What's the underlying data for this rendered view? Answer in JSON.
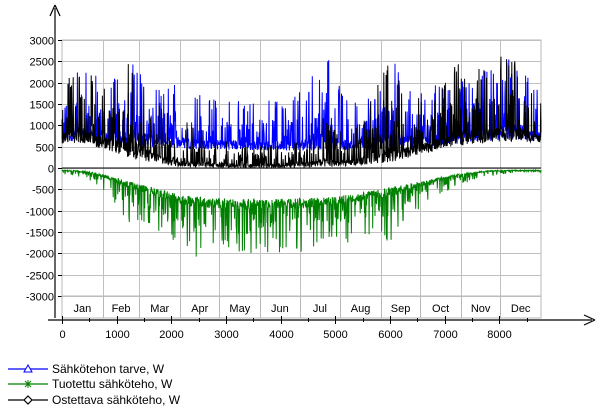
{
  "chart_data": {
    "type": "line",
    "title": "",
    "xlabel": "",
    "ylabel": "",
    "xlim": [
      0,
      8760
    ],
    "ylim": [
      -3000,
      3000
    ],
    "x_ticks": [
      0,
      1000,
      2000,
      3000,
      4000,
      5000,
      6000,
      7000,
      8000
    ],
    "y_ticks": [
      3000,
      2500,
      2000,
      1500,
      1000,
      500,
      0,
      -500,
      -1000,
      -1500,
      -2000,
      -2500,
      -3000
    ],
    "y_tick_labels": [
      "3000",
      "2500",
      "2000",
      "1500",
      "1000",
      "500",
      "0",
      "-500",
      "-1000",
      "-1500",
      "-2000",
      "-2500",
      "-3000"
    ],
    "months": [
      "Jan",
      "Feb",
      "Mar",
      "Apr",
      "May",
      "Jun",
      "Jul",
      "Aug",
      "Sep",
      "Oct",
      "Nov",
      "Dec"
    ],
    "month_boundaries": [
      0,
      744,
      1416,
      2160,
      2880,
      3624,
      4344,
      5088,
      5832,
      6552,
      7296,
      8016,
      8760
    ],
    "grid": true,
    "legend_position": "bottom-left",
    "series": [
      {
        "name": "Sähkötehon tarve, W",
        "color": "#0000ff",
        "marker": "triangle",
        "x": [
          0,
          300,
          600,
          900,
          1200,
          1500,
          1800,
          2100,
          2400,
          2700,
          3000,
          3300,
          3600,
          3900,
          4200,
          4500,
          4800,
          5100,
          5400,
          5700,
          6000,
          6300,
          6600,
          6900,
          7200,
          7500,
          7800,
          8100,
          8400,
          8760
        ],
        "base": [
          600,
          650,
          600,
          560,
          520,
          500,
          480,
          460,
          440,
          430,
          430,
          420,
          420,
          420,
          410,
          410,
          420,
          420,
          430,
          440,
          450,
          470,
          490,
          520,
          560,
          600,
          630,
          650,
          650,
          620
        ],
        "peak": [
          2000,
          2500,
          2200,
          2000,
          2900,
          2300,
          1800,
          2100,
          1900,
          1600,
          1850,
          1500,
          1650,
          1600,
          1700,
          2000,
          2800,
          1900,
          1500,
          1800,
          2800,
          1900,
          1800,
          2000,
          2000,
          2200,
          2300,
          2500,
          2800,
          1700
        ]
      },
      {
        "name": "Tuotettu sähköteho, W",
        "color": "#008000",
        "marker": "asterisk",
        "x": [
          0,
          300,
          600,
          900,
          1200,
          1500,
          1800,
          2100,
          2400,
          2700,
          3000,
          3300,
          3600,
          3900,
          4200,
          4500,
          4800,
          5100,
          5400,
          5700,
          6000,
          6300,
          6600,
          6900,
          7200,
          7500,
          7800,
          8100,
          8400,
          8760
        ],
        "base": [
          -50,
          -60,
          -100,
          -200,
          -300,
          -400,
          -500,
          -600,
          -650,
          -700,
          -720,
          -720,
          -720,
          -720,
          -720,
          -700,
          -680,
          -650,
          -600,
          -520,
          -450,
          -380,
          -300,
          -220,
          -150,
          -100,
          -60,
          -50,
          -50,
          -50
        ],
        "peak": [
          -150,
          -200,
          -400,
          -700,
          -1300,
          -1300,
          -1600,
          -1900,
          -2100,
          -2100,
          -1900,
          -2200,
          -2100,
          -1900,
          -2200,
          -2050,
          -1700,
          -1900,
          -1600,
          -1550,
          -1800,
          -1350,
          -900,
          -650,
          -450,
          -300,
          -200,
          -150,
          -100,
          -100
        ]
      },
      {
        "name": "Ostettava sähköteho, W",
        "color": "#000000",
        "marker": "diamond",
        "x": [
          0,
          300,
          600,
          900,
          1200,
          1500,
          1800,
          2100,
          2400,
          2700,
          3000,
          3300,
          3600,
          3900,
          4200,
          4500,
          4800,
          5100,
          5400,
          5700,
          6000,
          6300,
          6600,
          6900,
          7200,
          7500,
          7800,
          8100,
          8400,
          8760
        ],
        "base": [
          550,
          600,
          500,
          380,
          250,
          150,
          80,
          40,
          20,
          10,
          5,
          5,
          5,
          5,
          5,
          10,
          20,
          30,
          50,
          90,
          140,
          220,
          320,
          430,
          520,
          570,
          600,
          620,
          620,
          600
        ],
        "peak": [
          2100,
          2500,
          2200,
          2000,
          3000,
          2200,
          1500,
          1300,
          1000,
          800,
          700,
          600,
          600,
          600,
          700,
          800,
          1200,
          900,
          1000,
          1800,
          2700,
          1600,
          1700,
          2000,
          2400,
          2600,
          2300,
          2900,
          2400,
          1500
        ]
      }
    ]
  }
}
